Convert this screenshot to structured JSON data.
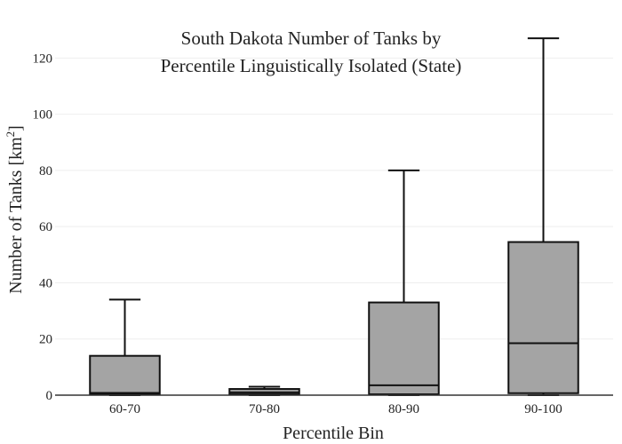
{
  "chart_data": {
    "type": "box",
    "title_lines": [
      "South Dakota Number of Tanks by",
      "Percentile Linguistically Isolated (State)"
    ],
    "xlabel": "Percentile Bin",
    "ylabel": "Number of Tanks  [km",
    "ylabel_sup": "2",
    "ylabel_close": "]",
    "categories": [
      "60-70",
      "70-80",
      "80-90",
      "90-100"
    ],
    "y_ticks": [
      0,
      20,
      40,
      60,
      80,
      100,
      120
    ],
    "ylim": [
      0,
      128
    ],
    "grid": true,
    "box_color": "#a4a4a4",
    "boxes": [
      {
        "category": "60-70",
        "min": 0,
        "q1": 0.3,
        "median": 0.8,
        "q3": 14,
        "max": 34
      },
      {
        "category": "70-80",
        "min": 0,
        "q1": 0.3,
        "median": 1.0,
        "q3": 2.2,
        "max": 3.0
      },
      {
        "category": "80-90",
        "min": 0,
        "q1": 0.3,
        "median": 3.5,
        "q3": 33,
        "max": 80
      },
      {
        "category": "90-100",
        "min": 0,
        "q1": 0.7,
        "median": 18.5,
        "q3": 54.5,
        "max": 127
      }
    ]
  }
}
